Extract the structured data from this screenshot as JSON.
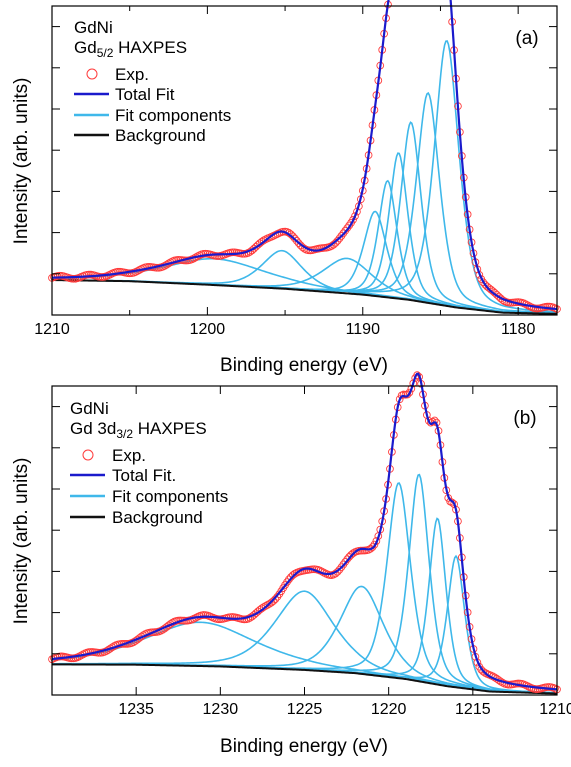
{
  "chart_data": [
    {
      "type": "line",
      "panel_label": "(a)",
      "legend_lines": [
        "GdNi",
        "Gd5/2 HAXPES"
      ],
      "legend_title": "GdNi",
      "legend_subtitle_main": "Gd",
      "legend_subtitle_sub": "5/2",
      "legend_subtitle_tail": " HAXPES",
      "legend": [
        "Exp.",
        "Total Fit",
        "Fit components",
        "Background"
      ],
      "xlabel": "Binding energy (eV)",
      "ylabel": "Intensity (arb. units)",
      "xlim": [
        1210,
        1177.5
      ],
      "x_reversed": true,
      "ylim": [
        0,
        1
      ],
      "ytick_labels_shown": false,
      "xticks": [
        1210,
        1200,
        1190,
        1180
      ],
      "xtick_labels": [
        "1210",
        "1200",
        "1190",
        "1180"
      ],
      "colors": {
        "exp": "#ff3b3b",
        "total": "#1a1acc",
        "components": "#3fb8ea",
        "background": "#111111"
      },
      "background": [
        [
          1210,
          0.12
        ],
        [
          1205,
          0.116
        ],
        [
          1200,
          0.104
        ],
        [
          1195,
          0.09
        ],
        [
          1190,
          0.07
        ],
        [
          1187,
          0.052
        ],
        [
          1184,
          0.026
        ],
        [
          1181,
          0.008
        ],
        [
          1177.5,
          0.004
        ]
      ],
      "components": [
        {
          "center": 1199.5,
          "amplitude": 0.09,
          "width": 3.6
        },
        {
          "center": 1195.2,
          "amplitude": 0.13,
          "width": 1.4
        },
        {
          "center": 1191.0,
          "amplitude": 0.12,
          "width": 1.7
        },
        {
          "center": 1189.2,
          "amplitude": 0.29,
          "width": 0.8
        },
        {
          "center": 1188.4,
          "amplitude": 0.4,
          "width": 0.65
        },
        {
          "center": 1187.7,
          "amplitude": 0.5,
          "width": 0.65
        },
        {
          "center": 1186.9,
          "amplitude": 0.61,
          "width": 0.7
        },
        {
          "center": 1185.8,
          "amplitude": 0.72,
          "width": 0.8
        },
        {
          "center": 1184.6,
          "amplitude": 0.91,
          "width": 0.85
        }
      ]
    },
    {
      "type": "line",
      "panel_label": "(b)",
      "legend_title": "GdNi",
      "legend_subtitle_main": "Gd 3d",
      "legend_subtitle_sub": "3/2",
      "legend_subtitle_tail": " HAXPES",
      "legend": [
        "Exp.",
        "Total Fit.",
        "Fit components",
        "Background"
      ],
      "xlabel": "Binding energy (eV)",
      "ylabel": "Intensity (arb. units)",
      "xlim": [
        1240,
        1210
      ],
      "x_reversed": true,
      "ylim": [
        0,
        1
      ],
      "ytick_labels_shown": false,
      "xticks": [
        1235,
        1230,
        1225,
        1220,
        1215,
        1210
      ],
      "xtick_labels": [
        "1235",
        "1230",
        "1225",
        "1220",
        "1215",
        "1210"
      ],
      "colors": {
        "exp": "#ff3b3b",
        "total": "#1a1acc",
        "components": "#3fb8ea",
        "background": "#111111"
      },
      "background": [
        [
          1239.5,
          0.105
        ],
        [
          1235,
          0.104
        ],
        [
          1230,
          0.098
        ],
        [
          1225,
          0.086
        ],
        [
          1222,
          0.075
        ],
        [
          1219,
          0.055
        ],
        [
          1216.5,
          0.03
        ],
        [
          1214,
          0.012
        ],
        [
          1210,
          0.005
        ]
      ],
      "components": [
        {
          "center": 1231.2,
          "amplitude": 0.15,
          "width": 3.6
        },
        {
          "center": 1225.0,
          "amplitude": 0.27,
          "width": 1.9
        },
        {
          "center": 1221.6,
          "amplitude": 0.3,
          "width": 1.4
        },
        {
          "center": 1219.4,
          "amplitude": 0.67,
          "width": 0.75
        },
        {
          "center": 1218.2,
          "amplitude": 0.71,
          "width": 0.65
        },
        {
          "center": 1217.1,
          "amplitude": 0.57,
          "width": 0.55
        },
        {
          "center": 1216.0,
          "amplitude": 0.45,
          "width": 0.55
        }
      ]
    }
  ]
}
